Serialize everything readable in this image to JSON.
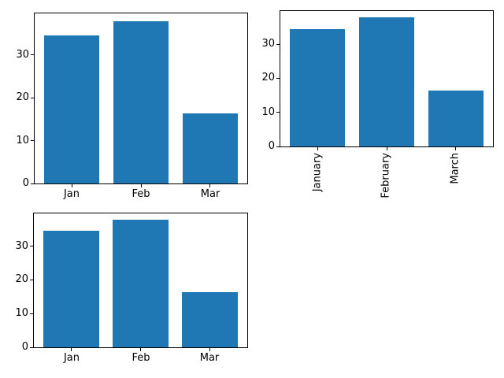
{
  "figure": {
    "background": "#ffffff",
    "spine_color": "#000000",
    "tick_color": "#000000"
  },
  "chart_data": [
    {
      "id": "top-left",
      "type": "bar",
      "categories": [
        "Jan",
        "Feb",
        "Mar"
      ],
      "values": [
        34.5,
        37.9,
        16.3
      ],
      "yticks": [
        0,
        10,
        20,
        30
      ],
      "ylim": [
        0,
        39.7
      ],
      "xlim": [
        -0.54,
        2.54
      ],
      "bar_width": 0.8,
      "bar_color": "#1f77b4",
      "xtick_rotation": 0,
      "grid": false,
      "title": "",
      "xlabel": "",
      "ylabel": ""
    },
    {
      "id": "top-right",
      "type": "bar",
      "categories": [
        "January",
        "February",
        "March"
      ],
      "values": [
        34.5,
        37.9,
        16.3
      ],
      "yticks": [
        0,
        10,
        20,
        30
      ],
      "ylim": [
        0,
        39.7
      ],
      "xlim": [
        -0.54,
        2.54
      ],
      "bar_width": 0.8,
      "bar_color": "#1f77b4",
      "xtick_rotation": 90,
      "grid": false,
      "title": "",
      "xlabel": "",
      "ylabel": ""
    },
    {
      "id": "bottom-left",
      "type": "bar",
      "categories": [
        "Jan",
        "Feb",
        "Mar"
      ],
      "values": [
        34.5,
        37.9,
        16.3
      ],
      "yticks": [
        0,
        10,
        20,
        30
      ],
      "ylim": [
        0,
        39.7
      ],
      "xlim": [
        -0.54,
        2.54
      ],
      "bar_width": 0.8,
      "bar_color": "#1f77b4",
      "xtick_rotation": 0,
      "grid": false,
      "title": "",
      "xlabel": "",
      "ylabel": ""
    }
  ]
}
